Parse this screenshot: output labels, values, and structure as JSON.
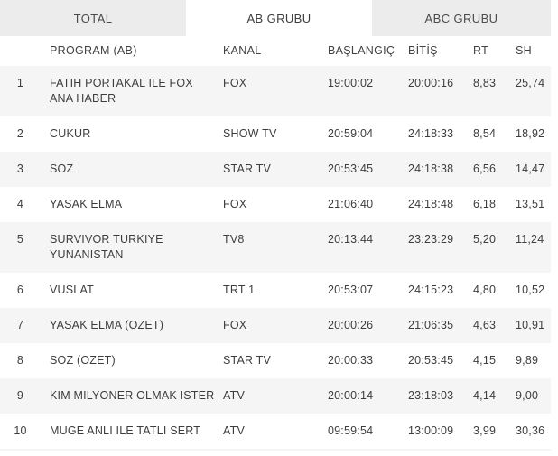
{
  "tabs": {
    "items": [
      {
        "label": "TOTAL",
        "active": false
      },
      {
        "label": "AB GRUBU",
        "active": true
      },
      {
        "label": "ABC GRUBU",
        "active": false
      }
    ]
  },
  "table": {
    "headers": {
      "rank": "",
      "program": "PROGRAM (AB)",
      "kanal": "KANAL",
      "baslangic": "BAŞLANGIÇ",
      "bitis": "BİTİŞ",
      "rt": "RT",
      "sh": "SH"
    },
    "rows": [
      {
        "rank": "1",
        "program": "FATIH PORTAKAL ILE FOX\nANA HABER",
        "kanal": "FOX",
        "baslangic": "19:00:02",
        "bitis": "20:00:16",
        "rt": "8,83",
        "sh": "25,74"
      },
      {
        "rank": "2",
        "program": "CUKUR",
        "kanal": "SHOW TV",
        "baslangic": "20:59:04",
        "bitis": "24:18:33",
        "rt": "8,54",
        "sh": "18,92"
      },
      {
        "rank": "3",
        "program": "SOZ",
        "kanal": "STAR TV",
        "baslangic": "20:53:45",
        "bitis": "24:18:38",
        "rt": "6,56",
        "sh": "14,47"
      },
      {
        "rank": "4",
        "program": "YASAK ELMA",
        "kanal": "FOX",
        "baslangic": "21:06:40",
        "bitis": "24:18:48",
        "rt": "6,18",
        "sh": "13,51"
      },
      {
        "rank": "5",
        "program": "SURVIVOR TURKIYE\nYUNANISTAN",
        "kanal": "TV8",
        "baslangic": "20:13:44",
        "bitis": "23:23:29",
        "rt": "5,20",
        "sh": "11,24"
      },
      {
        "rank": "6",
        "program": "VUSLAT",
        "kanal": "TRT 1",
        "baslangic": "20:53:07",
        "bitis": "24:15:23",
        "rt": "4,80",
        "sh": "10,52"
      },
      {
        "rank": "7",
        "program": "YASAK ELMA (OZET)",
        "kanal": "FOX",
        "baslangic": "20:00:26",
        "bitis": "21:06:35",
        "rt": "4,63",
        "sh": "10,91"
      },
      {
        "rank": "8",
        "program": "SOZ (OZET)",
        "kanal": "STAR TV",
        "baslangic": "20:00:33",
        "bitis": "20:53:45",
        "rt": "4,15",
        "sh": "9,89"
      },
      {
        "rank": "9",
        "program": "KIM MILYONER OLMAK ISTER",
        "kanal": "ATV",
        "baslangic": "20:00:14",
        "bitis": "23:18:03",
        "rt": "4,14",
        "sh": "9,00"
      },
      {
        "rank": "10",
        "program": "MUGE ANLI ILE TATLI SERT",
        "kanal": "ATV",
        "baslangic": "09:59:54",
        "bitis": "13:00:09",
        "rt": "3,99",
        "sh": "30,36"
      }
    ]
  },
  "colors": {
    "tab_inactive_bg": "#ececec",
    "tab_active_bg": "#ffffff",
    "row_stripe_bg": "#f5f5f5",
    "text": "#3d3d3d"
  }
}
